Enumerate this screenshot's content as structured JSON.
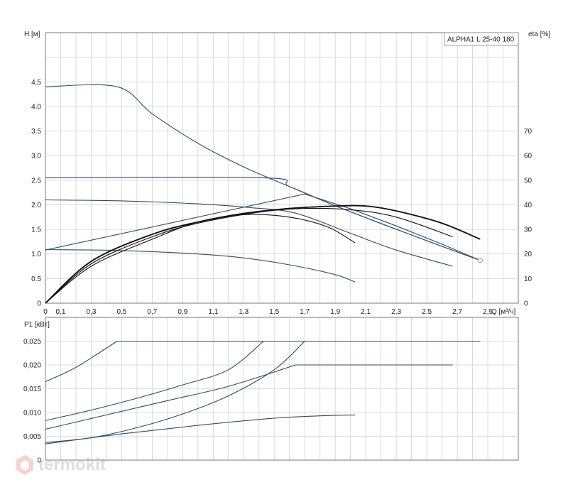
{
  "chart_data": [
    {
      "type": "line",
      "title": "ALPHA1 L 25-40 180",
      "xlabel": "Q [м³/ч]",
      "ylabel": "H [м]",
      "y2label": "eta [%]",
      "x_ticks": [
        "0",
        "0,1",
        "0,3",
        "0,5",
        "0,7",
        "0,9",
        "1,1",
        "1,3",
        "1,5",
        "1,7",
        "1,9",
        "2,1",
        "2,3",
        "2,5",
        "2,7",
        "2,9"
      ],
      "y_ticks": [
        "0",
        "0.5",
        "1.0",
        "1.5",
        "2.0",
        "2.5",
        "3.0",
        "3.5",
        "4.0",
        "4.5"
      ],
      "y2_ticks": [
        "0",
        "10",
        "20",
        "30",
        "40",
        "50",
        "60",
        "70"
      ],
      "xlim": [
        0,
        3.1
      ],
      "ylim": [
        0,
        5.5
      ],
      "y2lim": [
        0,
        110
      ],
      "grid": true,
      "series": [
        {
          "values": [
            [
              0,
              4.4
            ],
            [
              0.47,
              4.4
            ],
            [
              0.7,
              3.85
            ],
            [
              1.0,
              3.25
            ],
            [
              1.3,
              2.77
            ],
            [
              1.6,
              2.37
            ],
            [
              1.9,
              1.98
            ],
            [
              2.2,
              1.62
            ],
            [
              2.5,
              1.27
            ],
            [
              2.85,
              0.87
            ]
          ]
        },
        {
          "values": [
            [
              0,
              2.55
            ],
            [
              1.43,
              2.55
            ],
            [
              1.6,
              2.37
            ],
            [
              1.9,
              1.98
            ],
            [
              2.2,
              1.62
            ],
            [
              2.5,
              1.27
            ],
            [
              2.85,
              0.87
            ]
          ]
        },
        {
          "values": [
            [
              0,
              2.1
            ],
            [
              0.5,
              2.08
            ],
            [
              1.0,
              2.02
            ],
            [
              1.35,
              1.94
            ],
            [
              1.64,
              1.83
            ],
            [
              2.0,
              1.42
            ],
            [
              2.3,
              1.08
            ],
            [
              2.67,
              0.75
            ]
          ]
        },
        {
          "values": [
            [
              0,
              1.09
            ],
            [
              0.5,
              1.07
            ],
            [
              1.0,
              1.0
            ],
            [
              1.3,
              0.92
            ],
            [
              1.6,
              0.78
            ],
            [
              1.9,
              0.58
            ],
            [
              2.03,
              0.43
            ]
          ]
        },
        {
          "values": [
            [
              0,
              1.08
            ],
            [
              1.7,
              2.22
            ],
            [
              2.0,
              1.92
            ],
            [
              2.3,
              1.57
            ],
            [
              2.6,
              1.2
            ],
            [
              2.85,
              0.87
            ]
          ]
        }
      ],
      "eta_series": [
        {
          "values": [
            [
              0,
              0
            ],
            [
              0.3,
              17
            ],
            [
              0.7,
              28
            ],
            [
              1.0,
              33
            ],
            [
              1.3,
              36.5
            ],
            [
              1.6,
              38.5
            ],
            [
              1.9,
              39.5
            ],
            [
              2.1,
              39.5
            ],
            [
              2.3,
              37.5
            ],
            [
              2.6,
              32.5
            ],
            [
              2.85,
              26
            ]
          ]
        },
        {
          "values": [
            [
              0,
              0
            ],
            [
              0.3,
              17
            ],
            [
              0.7,
              28
            ],
            [
              1.0,
              33
            ],
            [
              1.3,
              36.5
            ],
            [
              1.6,
              38.5
            ],
            [
              1.9,
              39.5
            ],
            [
              2.1,
              39.5
            ],
            [
              2.3,
              37.5
            ],
            [
              2.6,
              32.5
            ],
            [
              2.85,
              26
            ]
          ]
        },
        {
          "values": [
            [
              0,
              0
            ],
            [
              0.3,
              16
            ],
            [
              0.7,
              27
            ],
            [
              1.0,
              32.5
            ],
            [
              1.4,
              37
            ],
            [
              1.7,
              38.5
            ],
            [
              2.0,
              38
            ],
            [
              2.3,
              35
            ],
            [
              2.67,
              27
            ]
          ]
        },
        {
          "values": [
            [
              0,
              0
            ],
            [
              0.3,
              15
            ],
            [
              0.7,
              26
            ],
            [
              1.0,
              33
            ],
            [
              1.3,
              36
            ],
            [
              1.6,
              35
            ],
            [
              1.85,
              31
            ],
            [
              2.03,
              24.5
            ]
          ]
        }
      ],
      "end_marker": [
        2.85,
        0.87
      ]
    },
    {
      "type": "line",
      "ylabel": "P1 [кВт]",
      "y_ticks": [
        "0",
        "0,005",
        "0,010",
        "0,015",
        "0,020",
        "0,025"
      ],
      "ylim": [
        0,
        0.03
      ],
      "xlim": [
        0,
        3.1
      ],
      "grid": true,
      "series": [
        {
          "values": [
            [
              0,
              0.0165
            ],
            [
              0.2,
              0.0195
            ],
            [
              0.47,
              0.025
            ],
            [
              2.85,
              0.025
            ]
          ]
        },
        {
          "values": [
            [
              0,
              0.0083
            ],
            [
              0.3,
              0.0105
            ],
            [
              0.6,
              0.013
            ],
            [
              0.9,
              0.0158
            ],
            [
              1.2,
              0.019
            ],
            [
              1.43,
              0.025
            ],
            [
              2.85,
              0.025
            ]
          ]
        },
        {
          "values": [
            [
              0,
              0.0065
            ],
            [
              0.4,
              0.0095
            ],
            [
              0.8,
              0.0125
            ],
            [
              1.2,
              0.0155
            ],
            [
              1.64,
              0.02
            ],
            [
              2.67,
              0.02
            ]
          ]
        },
        {
          "values": [
            [
              0,
              0.0037
            ],
            [
              0.3,
              0.0047
            ],
            [
              0.6,
              0.0068
            ],
            [
              0.9,
              0.0097
            ],
            [
              1.2,
              0.0135
            ],
            [
              1.5,
              0.019
            ],
            [
              1.7,
              0.025
            ]
          ]
        },
        {
          "values": [
            [
              0,
              0.0034
            ],
            [
              0.5,
              0.0055
            ],
            [
              1.0,
              0.0073
            ],
            [
              1.5,
              0.0088
            ],
            [
              1.8,
              0.0093
            ],
            [
              2.03,
              0.0095
            ]
          ]
        }
      ]
    }
  ],
  "watermark": {
    "text": "termokit",
    "color": "#8a8a8a"
  }
}
